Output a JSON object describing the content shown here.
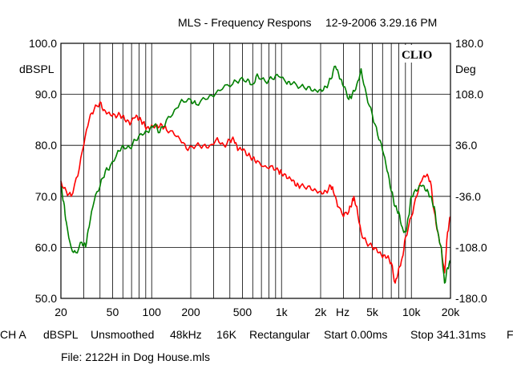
{
  "header": {
    "title": "MLS - Frequency Respons",
    "timestamp": "12-9-2006 3.29.16 PM"
  },
  "footer": {
    "settings": [
      "CH A",
      "dBSPL",
      "Unsmoothed",
      "48kHz",
      "16K",
      "Rectangular",
      "Start 0.00ms",
      "Stop 341.31ms",
      "F"
    ],
    "file": "File: 2122H in Dog House.mls"
  },
  "chart_data": {
    "type": "line",
    "brand": "CLIO",
    "x_scale": "log",
    "xlim": [
      20,
      20000
    ],
    "xunit": "Hz",
    "xticks": [
      {
        "v": 20,
        "label": "20"
      },
      {
        "v": 50,
        "label": "50"
      },
      {
        "v": 100,
        "label": "100"
      },
      {
        "v": 200,
        "label": "200"
      },
      {
        "v": 500,
        "label": "500"
      },
      {
        "v": 1000,
        "label": "1k"
      },
      {
        "v": 2000,
        "label": "2k"
      },
      {
        "v": 5000,
        "label": "5k"
      },
      {
        "v": 10000,
        "label": "10k"
      },
      {
        "v": 20000,
        "label": "20k"
      }
    ],
    "ylabel": "dBSPL",
    "ylim": [
      50,
      100
    ],
    "yticks": [
      "100.0",
      "90.0",
      "80.0",
      "70.0",
      "60.0",
      "50.0"
    ],
    "y2label": "Deg",
    "y2lim": [
      -180,
      180
    ],
    "y2ticks": [
      "180.0",
      "108.0",
      "36.0",
      "-36.0",
      "-108.0",
      "-180.0"
    ],
    "grid": true,
    "series": [
      {
        "color": "#ff0000",
        "axis": "left",
        "points": [
          [
            20,
            73
          ],
          [
            22,
            71
          ],
          [
            24,
            70
          ],
          [
            27,
            74
          ],
          [
            30,
            80
          ],
          [
            33,
            85
          ],
          [
            36,
            87
          ],
          [
            40,
            88.5
          ],
          [
            43,
            87
          ],
          [
            47,
            86.5
          ],
          [
            52,
            86
          ],
          [
            57,
            86
          ],
          [
            62,
            85
          ],
          [
            68,
            84
          ],
          [
            75,
            85.5
          ],
          [
            80,
            85
          ],
          [
            86,
            84.5
          ],
          [
            92,
            83.5
          ],
          [
            100,
            84
          ],
          [
            110,
            84
          ],
          [
            120,
            84
          ],
          [
            130,
            83
          ],
          [
            150,
            82
          ],
          [
            170,
            80.5
          ],
          [
            190,
            79
          ],
          [
            220,
            80
          ],
          [
            250,
            80
          ],
          [
            280,
            80
          ],
          [
            320,
            81.5
          ],
          [
            360,
            80
          ],
          [
            400,
            81
          ],
          [
            430,
            81
          ],
          [
            460,
            79
          ],
          [
            500,
            79
          ],
          [
            550,
            78
          ],
          [
            600,
            77.5
          ],
          [
            650,
            77
          ],
          [
            750,
            76
          ],
          [
            850,
            76
          ],
          [
            950,
            75
          ],
          [
            1000,
            74.5
          ],
          [
            1100,
            73.5
          ],
          [
            1200,
            73
          ],
          [
            1300,
            72
          ],
          [
            1400,
            72
          ],
          [
            1600,
            72
          ],
          [
            1800,
            71.5
          ],
          [
            2000,
            71
          ],
          [
            2200,
            71
          ],
          [
            2400,
            72
          ],
          [
            2500,
            71
          ],
          [
            2700,
            68
          ],
          [
            3000,
            66
          ],
          [
            3300,
            67
          ],
          [
            3500,
            69
          ],
          [
            3600,
            70
          ],
          [
            3800,
            68
          ],
          [
            4100,
            63
          ],
          [
            4500,
            61
          ],
          [
            5000,
            60
          ],
          [
            5500,
            59
          ],
          [
            6000,
            58
          ],
          [
            6500,
            58
          ],
          [
            7000,
            57
          ],
          [
            7500,
            53
          ],
          [
            8000,
            56
          ],
          [
            8500,
            58
          ],
          [
            9000,
            62
          ],
          [
            10000,
            66
          ],
          [
            11000,
            70
          ],
          [
            12000,
            73
          ],
          [
            13000,
            74
          ],
          [
            14000,
            73
          ],
          [
            15000,
            67
          ],
          [
            16000,
            63
          ],
          [
            17000,
            60
          ],
          [
            18000,
            55
          ],
          [
            19000,
            63
          ],
          [
            20000,
            66
          ]
        ]
      },
      {
        "color": "#008000",
        "axis": "left",
        "points": [
          [
            20,
            72
          ],
          [
            21,
            69
          ],
          [
            22,
            65
          ],
          [
            24,
            60
          ],
          [
            26,
            59
          ],
          [
            29,
            61
          ],
          [
            31,
            60
          ],
          [
            33,
            64
          ],
          [
            36,
            69
          ],
          [
            40,
            72
          ],
          [
            44,
            75
          ],
          [
            48,
            76
          ],
          [
            55,
            79
          ],
          [
            60,
            80
          ],
          [
            68,
            79.5
          ],
          [
            75,
            81
          ],
          [
            85,
            82
          ],
          [
            95,
            82.5
          ],
          [
            105,
            84
          ],
          [
            115,
            82.5
          ],
          [
            130,
            85
          ],
          [
            150,
            87
          ],
          [
            170,
            89
          ],
          [
            200,
            89
          ],
          [
            220,
            88
          ],
          [
            260,
            89
          ],
          [
            300,
            89.5
          ],
          [
            350,
            91
          ],
          [
            420,
            92
          ],
          [
            480,
            93
          ],
          [
            550,
            93
          ],
          [
            600,
            92
          ],
          [
            650,
            94
          ],
          [
            750,
            92.5
          ],
          [
            850,
            93
          ],
          [
            950,
            93.5
          ],
          [
            1100,
            92
          ],
          [
            1200,
            92
          ],
          [
            1400,
            91.5
          ],
          [
            1600,
            91.5
          ],
          [
            1800,
            91
          ],
          [
            2000,
            91
          ],
          [
            2200,
            91.5
          ],
          [
            2400,
            93
          ],
          [
            2600,
            95.5
          ],
          [
            2800,
            93
          ],
          [
            3000,
            91.5
          ],
          [
            3300,
            89
          ],
          [
            3500,
            90
          ],
          [
            3800,
            92
          ],
          [
            4100,
            95
          ],
          [
            4500,
            90
          ],
          [
            5000,
            86
          ],
          [
            5500,
            82
          ],
          [
            6000,
            79
          ],
          [
            6500,
            75
          ],
          [
            7000,
            71
          ],
          [
            7500,
            68
          ],
          [
            8000,
            67
          ],
          [
            8500,
            64
          ],
          [
            9000,
            63
          ],
          [
            9500,
            66
          ],
          [
            10000,
            70
          ],
          [
            11000,
            71
          ],
          [
            12000,
            72
          ],
          [
            13000,
            71
          ],
          [
            14000,
            70
          ],
          [
            15000,
            68
          ],
          [
            16000,
            63
          ],
          [
            17000,
            60
          ],
          [
            18000,
            53
          ],
          [
            19000,
            56
          ],
          [
            20000,
            57
          ]
        ]
      }
    ]
  }
}
